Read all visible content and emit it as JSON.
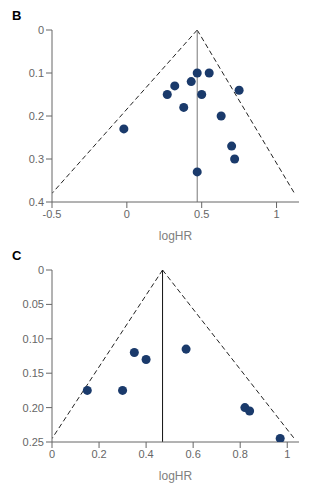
{
  "chart_data": [
    {
      "type": "scatter",
      "title": "B",
      "x": [
        -0.02,
        0.27,
        0.32,
        0.38,
        0.43,
        0.47,
        0.47,
        0.5,
        0.55,
        0.63,
        0.7,
        0.72,
        0.75
      ],
      "values": [
        0.23,
        0.15,
        0.13,
        0.18,
        0.12,
        0.1,
        0.33,
        0.15,
        0.1,
        0.2,
        0.27,
        0.3,
        0.14
      ],
      "color": "#1a3a6b",
      "xlabel": "logHR",
      "xlim": [
        -0.5,
        1.15
      ],
      "ylim": [
        0.4,
        0.0
      ],
      "xticks": [
        -0.5,
        0,
        0.5,
        1
      ],
      "yticks": [
        0,
        0.1,
        0.2,
        0.3,
        0.4
      ],
      "funnel": {
        "tip": [
          0.47,
          0.0
        ],
        "left": [
          -0.5,
          0.38
        ],
        "right": [
          1.12,
          0.38
        ],
        "color": "#222222",
        "line_style": "dashed"
      },
      "center_line": {
        "x": 0.47,
        "color": "#777777",
        "line_style": "solid"
      }
    },
    {
      "type": "scatter",
      "title": "C",
      "x": [
        0.15,
        0.3,
        0.35,
        0.4,
        0.57,
        0.82,
        0.84,
        0.97
      ],
      "values": [
        0.175,
        0.175,
        0.12,
        0.13,
        0.115,
        0.2,
        0.205,
        0.245
      ],
      "color": "#1a3a6b",
      "xlabel": "logHR",
      "xlim": [
        0.0,
        1.05
      ],
      "ylim": [
        0.25,
        0.0
      ],
      "xticks": [
        0,
        0.2,
        0.4,
        0.6,
        0.8,
        1
      ],
      "yticks": [
        0,
        0.05,
        {
          "value": 0.1,
          "label": "0.10"
        },
        0.15,
        {
          "value": 0.2,
          "label": "0.20"
        },
        0.25
      ],
      "funnel": {
        "tip": [
          0.47,
          0.0
        ],
        "left": [
          0.0,
          0.245
        ],
        "right": [
          1.03,
          0.245
        ],
        "color": "#222222",
        "line_style": "dashed"
      },
      "center_line": {
        "x": 0.47,
        "color": "#111111",
        "line_style": "solid"
      }
    }
  ]
}
